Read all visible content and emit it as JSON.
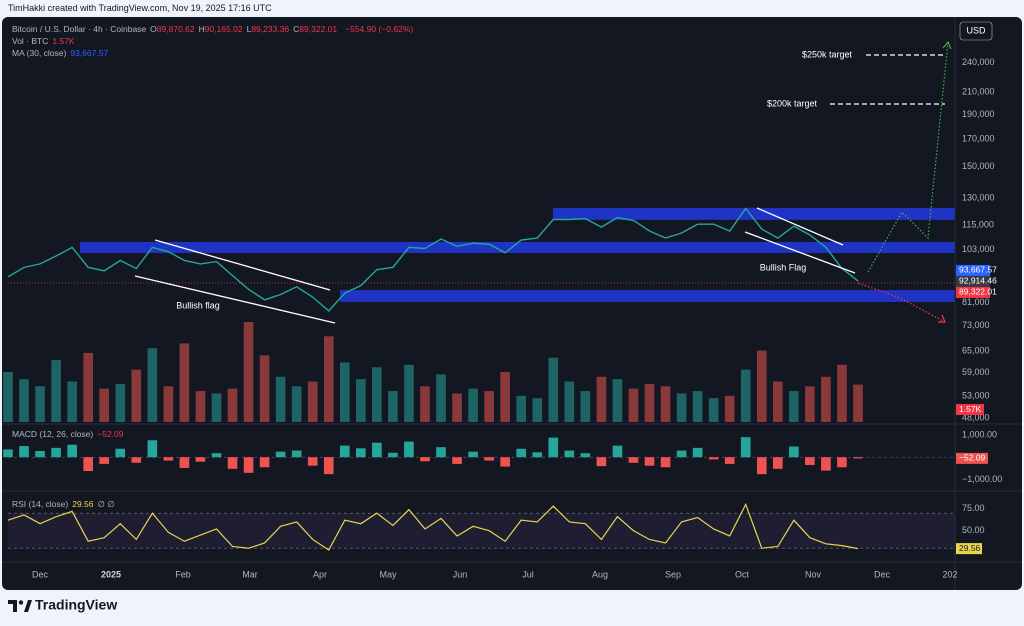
{
  "header": {
    "credit": "TimHakki created with TradingView.com, Nov 19, 2025 17:16 UTC",
    "currency": "USD",
    "brand": "TradingView"
  },
  "chart_data": [
    {
      "type": "line",
      "title": "Bitcoin / U.S. Dollar · 4h · Coinbase",
      "ohlc": [
        {
          "key": "O",
          "value": "89,870.62"
        },
        {
          "key": "H",
          "value": "90,165.02"
        },
        {
          "key": "L",
          "value": "89,233.36"
        },
        {
          "key": "C",
          "value": "89,322.01"
        }
      ],
      "change": "−554.90 (−0.62%)",
      "ma_legend": "MA (30, close)",
      "ma_value": "93,667.57",
      "xtick_labels": [
        "Dec",
        "2025",
        "Feb",
        "Mar",
        "Apr",
        "May",
        "Jun",
        "Jul",
        "Aug",
        "Sep",
        "Oct",
        "Nov",
        "Dec",
        "202"
      ],
      "values": [
        91000,
        95000,
        96500,
        100000,
        104000,
        95000,
        93500,
        98000,
        94500,
        104000,
        102000,
        98000,
        96500,
        97500,
        91500,
        86000,
        82000,
        84000,
        87000,
        83000,
        78000,
        84500,
        87500,
        94000,
        95000,
        104000,
        103500,
        108000,
        104500,
        106000,
        105500,
        101500,
        107500,
        108500,
        118000,
        118000,
        118500,
        114000,
        119000,
        117500,
        112000,
        108500,
        111000,
        115500,
        115500,
        112000,
        124000,
        113000,
        108500,
        114500,
        110000,
        104000,
        94500,
        89322.01
      ],
      "color": "#26a69a",
      "log_scale": true,
      "ylim": [
        47140,
        291400
      ],
      "yticks": [
        {
          "value": 48000,
          "label": "48,000"
        },
        {
          "value": 53000,
          "label": "53,000"
        },
        {
          "value": 59000,
          "label": "59,000"
        },
        {
          "value": 65000,
          "label": "65,000"
        },
        {
          "value": 73000,
          "label": "73,000"
        },
        {
          "value": 81000,
          "label": "81,000"
        },
        {
          "value": 103000,
          "label": "103,000"
        },
        {
          "value": 115000,
          "label": "115,000"
        },
        {
          "value": 130000,
          "label": "130,000"
        },
        {
          "value": 150000,
          "label": "150,000"
        },
        {
          "value": 170000,
          "label": "170,000"
        },
        {
          "value": 190000,
          "label": "190,000"
        },
        {
          "value": 210000,
          "label": "210,000"
        },
        {
          "value": 240000,
          "label": "240,000"
        }
      ],
      "grid": false,
      "zones": [
        {
          "from": 101400,
          "to": 106600
        },
        {
          "from": 117800,
          "to": 124400
        },
        {
          "from": 81200,
          "to": 85700
        }
      ],
      "zone_color": "#1f33c4",
      "badges": [
        {
          "value": 93667.57,
          "label": "93,667.57",
          "color": "#2962ff"
        },
        {
          "value": 92914.46,
          "label": "92,914.46",
          "color": "#363a45"
        },
        {
          "value": 89322.01,
          "label": "89,322.01",
          "color": "#f23645"
        }
      ],
      "annotations": [
        "Bullish flag",
        "Bullish Flag",
        "$250k target",
        "$200k target"
      ]
    },
    {
      "type": "bar",
      "title": "Vol · BTC",
      "value_label": "1.57K",
      "values": [
        2100,
        1800,
        1500,
        2600,
        1700,
        2900,
        1400,
        1600,
        2200,
        3100,
        1500,
        3300,
        1300,
        1200,
        1400,
        4200,
        2800,
        1900,
        1500,
        1700,
        3600,
        2500,
        1800,
        2300,
        1300,
        2400,
        1500,
        2000,
        1200,
        1400,
        1300,
        2100,
        1100,
        1000,
        2700,
        1700,
        1300,
        1900,
        1800,
        1400,
        1600,
        1500,
        1200,
        1300,
        1000,
        1100,
        2200,
        3000,
        1700,
        1300,
        1500,
        1900,
        2400,
        1570
      ],
      "up_color": "#26a69a",
      "down_color": "#ef5350",
      "badge_color": "#f23645"
    },
    {
      "type": "bar",
      "title": "MACD (12, 26, close)",
      "last_label": "−52.09",
      "values": [
        350,
        500,
        280,
        420,
        560,
        -620,
        -300,
        380,
        -250,
        760,
        -150,
        -480,
        -200,
        180,
        -520,
        -700,
        -450,
        250,
        300,
        -380,
        -760,
        520,
        400,
        650,
        200,
        700,
        -180,
        450,
        -300,
        250,
        -150,
        -420,
        380,
        220,
        880,
        300,
        180,
        -400,
        520,
        -250,
        -380,
        -450,
        300,
        420,
        -100,
        -300,
        900,
        -760,
        -520,
        480,
        -350,
        -600,
        -450,
        -52.09
      ],
      "ylim": [
        -1470,
        1400
      ],
      "yticks": [
        {
          "value": 1000,
          "label": "1,000.00"
        },
        {
          "value": -1000,
          "label": "−1,000.00"
        }
      ],
      "up_color": "#26a69a",
      "down_color": "#ef5350"
    },
    {
      "type": "line",
      "title": "RSI (14, close)",
      "last_value": 29.56,
      "extra": "∅ ∅",
      "values": [
        62,
        68,
        58,
        66,
        72,
        38,
        42,
        58,
        40,
        70,
        48,
        38,
        45,
        52,
        32,
        30,
        36,
        55,
        60,
        40,
        28,
        62,
        58,
        70,
        56,
        74,
        52,
        64,
        44,
        55,
        50,
        38,
        62,
        60,
        78,
        60,
        58,
        40,
        66,
        50,
        40,
        36,
        60,
        65,
        52,
        44,
        80,
        30,
        32,
        62,
        42,
        35,
        33,
        29.56
      ],
      "ylim": [
        20,
        93
      ],
      "yticks": [
        {
          "value": 75,
          "label": "75.00"
        },
        {
          "value": 50,
          "label": "50.00"
        }
      ],
      "band": [
        30,
        70
      ],
      "color": "#e8d44d"
    }
  ]
}
